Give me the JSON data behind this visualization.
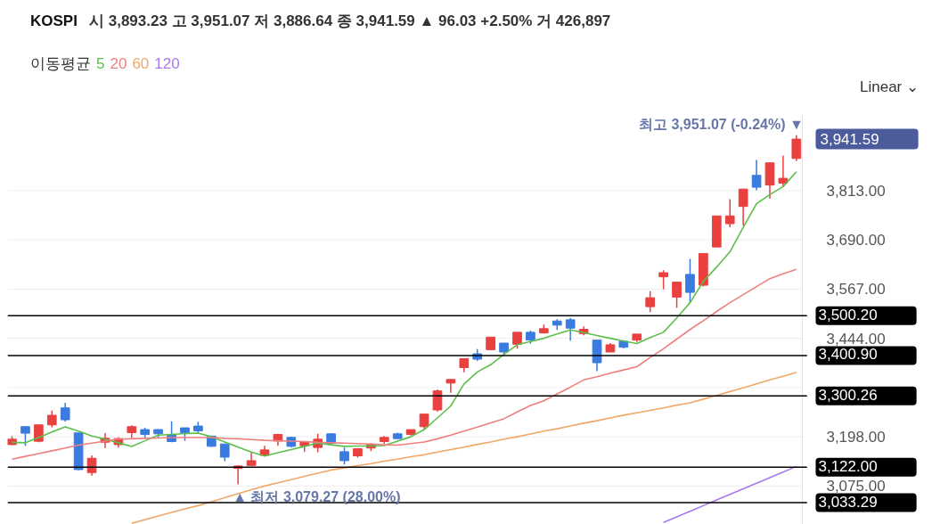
{
  "chart_data": {
    "type": "candlestick",
    "title": "KOSPI",
    "subtitle": "시 3,893.23 고 3,951.07 저 3,886.64 종 3,941.59 ▲ 96.03 +2.50% 거 426,897",
    "legend_title": "이동평균",
    "legend": "top",
    "grid": "y",
    "categories": [
      null,
      null,
      null,
      null,
      null,
      null,
      null,
      null,
      null,
      null,
      null,
      null,
      null,
      null,
      null,
      null,
      null,
      null,
      null,
      null,
      null,
      null,
      null,
      null,
      null,
      null,
      null,
      null,
      null,
      null,
      null,
      null,
      null,
      null,
      null,
      null,
      null,
      null,
      null,
      null,
      null,
      null,
      null,
      null,
      null,
      null,
      null,
      null,
      null,
      null,
      null,
      null,
      null,
      null,
      null,
      null,
      null,
      null,
      null,
      null
    ],
    "ohlc": [
      [
        3178.5,
        3199.6,
        3177.2,
        3191.9
      ],
      [
        3223.3,
        3223.3,
        3175.6,
        3207.0
      ],
      [
        3186.8,
        3227.7,
        3184.6,
        3227.7
      ],
      [
        3227.7,
        3263.5,
        3221.9,
        3251.7
      ],
      [
        3270.2,
        3283.0,
        3235.3,
        3240.5
      ],
      [
        3207.6,
        3207.6,
        3115.0,
        3116.0
      ],
      [
        3108.5,
        3151.7,
        3101.0,
        3144.3
      ],
      [
        3184.6,
        3207.0,
        3169.9,
        3194.2
      ],
      [
        3178.5,
        3196.4,
        3171.2,
        3193.5
      ],
      [
        3208.5,
        3226.4,
        3195.1,
        3223.3
      ],
      [
        3215.9,
        3220.4,
        3195.1,
        3204.0
      ],
      [
        3215.9,
        3217.0,
        3195.1,
        3205.4
      ],
      [
        3202.5,
        3236.7,
        3184.6,
        3186.1
      ],
      [
        3220.4,
        3220.4,
        3187.5,
        3208.5
      ],
      [
        3224.8,
        3235.3,
        3207.0,
        3213.0
      ],
      [
        3199.6,
        3200.9,
        3172.7,
        3174.1
      ],
      [
        3180.1,
        3180.1,
        3137.0,
        3147.2
      ],
      [
        3119.0,
        3126.4,
        3079.27,
        3124.9
      ],
      [
        3126.4,
        3159.3,
        3126.4,
        3138.3
      ],
      [
        3151.7,
        3175.6,
        3150.4,
        3165.1
      ],
      [
        3187.5,
        3203.9,
        3175.6,
        3203.9
      ],
      [
        3196.4,
        3198.0,
        3171.2,
        3174.1
      ],
      [
        3175.6,
        3184.6,
        3160.7,
        3184.6
      ],
      [
        3171.2,
        3205.4,
        3159.3,
        3192.0
      ],
      [
        3205.4,
        3207.0,
        3178.5,
        3181.7
      ],
      [
        3160.7,
        3171.2,
        3129.0,
        3138.3
      ],
      [
        3150.4,
        3168.2,
        3146.0,
        3168.2
      ],
      [
        3169.9,
        3181.7,
        3162.2,
        3178.5
      ],
      [
        3186.1,
        3199.6,
        3180.1,
        3196.4
      ],
      [
        3205.4,
        3208.5,
        3192.0,
        3193.5
      ],
      [
        3204.0,
        3215.9,
        3200.9,
        3215.9
      ],
      [
        3223.3,
        3254.6,
        3217.5,
        3254.6
      ],
      [
        3265.0,
        3316.0,
        3260.6,
        3312.7
      ],
      [
        3332.2,
        3341.1,
        3308.0,
        3341.1
      ],
      [
        3370.9,
        3393.2,
        3359.0,
        3393.2
      ],
      [
        3405.3,
        3417.2,
        3387.4,
        3391.9
      ],
      [
        3415.6,
        3446.9,
        3414.3,
        3446.9
      ],
      [
        3432.0,
        3432.0,
        3402.2,
        3409.8
      ],
      [
        3429.0,
        3459.0,
        3418.7,
        3459.0
      ],
      [
        3459.0,
        3463.4,
        3430.6,
        3439.5
      ],
      [
        3457.4,
        3478.2,
        3455.8,
        3468.0
      ],
      [
        3487.2,
        3491.6,
        3464.8,
        3476.9
      ],
      [
        3490.3,
        3494.8,
        3438.0,
        3469.3
      ],
      [
        3455.8,
        3473.7,
        3451.4,
        3466.4
      ],
      [
        3439.5,
        3439.5,
        3362.0,
        3383.0
      ],
      [
        3409.8,
        3432.0,
        3409.8,
        3427.7
      ],
      [
        3436.6,
        3439.5,
        3418.7,
        3421.6
      ],
      [
        3439.5,
        3454.5,
        3435.0,
        3454.5
      ],
      [
        3523.0,
        3561.9,
        3509.5,
        3545.3
      ],
      [
        3597.6,
        3614.0,
        3566.3,
        3607.9
      ],
      [
        3546.9,
        3584.2,
        3520.0,
        3584.2
      ],
      [
        3603.5,
        3642.4,
        3531.9,
        3558.7
      ],
      [
        3576.6,
        3655.8,
        3573.7,
        3655.8
      ],
      [
        3672.1,
        3749.7,
        3672.1,
        3749.7
      ],
      [
        3730.3,
        3791.3,
        3721.3,
        3749.7
      ],
      [
        3773.4,
        3816.8,
        3725.8,
        3816.8
      ],
      [
        3851.0,
        3889.7,
        3813.7,
        3821.3
      ],
      [
        3826.8,
        3882.3,
        3792.9,
        3882.3
      ],
      [
        3831.6,
        3900.2,
        3821.3,
        3843.6
      ],
      [
        3893.23,
        3951.07,
        3886.64,
        3941.59
      ]
    ],
    "colors": [
      "#e8413f",
      "#3a7be0",
      "#e8413f",
      "#e8413f",
      "#3a7be0",
      "#3a7be0",
      "#e8413f",
      "#e8413f",
      "#e8413f",
      "#e8413f",
      "#3a7be0",
      "#3a7be0",
      "#3a7be0",
      "#3a7be0",
      "#3a7be0",
      "#3a7be0",
      "#3a7be0",
      "#e8413f",
      "#e8413f",
      "#e8413f",
      "#e8413f",
      "#3a7be0",
      "#e8413f",
      "#e8413f",
      "#3a7be0",
      "#3a7be0",
      "#e8413f",
      "#e8413f",
      "#e8413f",
      "#3a7be0",
      "#e8413f",
      "#e8413f",
      "#e8413f",
      "#e8413f",
      "#e8413f",
      "#3a7be0",
      "#e8413f",
      "#3a7be0",
      "#e8413f",
      "#3a7be0",
      "#e8413f",
      "#3a7be0",
      "#3a7be0",
      "#e8413f",
      "#3a7be0",
      "#e8413f",
      "#3a7be0",
      "#e8413f",
      "#e8413f",
      "#e8413f",
      "#e8413f",
      "#3a7be0",
      "#e8413f",
      "#e8413f",
      "#e8413f",
      "#e8413f",
      "#3a7be0",
      "#e8413f",
      "#e8413f",
      "#e8413f"
    ],
    "series": [
      {
        "name": "5",
        "type": "line",
        "color": "#5bbf4a",
        "values": [
          3184,
          3183,
          3196,
          3210,
          3223,
          3212,
          3200,
          3192,
          3183,
          3174,
          3188,
          3202,
          3204,
          3206,
          3207,
          3198,
          3185,
          3172,
          3160,
          3150,
          3158,
          3166,
          3174,
          3182,
          3178,
          3174,
          3175,
          3175,
          3176,
          3187,
          3198,
          3216,
          3245,
          3275,
          3330,
          3360,
          3378,
          3404,
          3428,
          3436,
          3444,
          3455,
          3465,
          3458,
          3451,
          3444,
          3437,
          3431,
          3446,
          3459,
          3495,
          3533,
          3586,
          3622,
          3660,
          3721,
          3780,
          3803,
          3823,
          3860
        ]
      },
      {
        "name": "20",
        "type": "line",
        "color": "#ee7f7f",
        "values": [
          3142,
          3149,
          3156,
          3163,
          3170,
          3177,
          3182,
          3187,
          3192,
          3193,
          3194,
          3195,
          3196,
          3196,
          3196,
          3196,
          3194,
          3193,
          3191,
          3189,
          3188,
          3187,
          3186,
          3184,
          3183,
          3182,
          3181,
          3180,
          3178,
          3177,
          3181,
          3185,
          3193,
          3202,
          3212,
          3222,
          3233,
          3243,
          3260,
          3276,
          3288,
          3305,
          3322,
          3340,
          3348,
          3357,
          3365,
          3373,
          3396,
          3418,
          3442,
          3466,
          3488,
          3511,
          3533,
          3553,
          3573,
          3593,
          3605,
          3616
        ]
      },
      {
        "name": "60",
        "type": "line",
        "color": "#f0a868",
        "values": [
          null,
          null,
          null,
          null,
          null,
          null,
          null,
          null,
          null,
          2982,
          2991,
          3000,
          3009,
          3018,
          3026,
          3036,
          3046,
          3056,
          3066,
          3075,
          3083,
          3091,
          3099,
          3107,
          3115,
          3120,
          3126,
          3131,
          3137,
          3142,
          3148,
          3153,
          3160,
          3166,
          3172,
          3179,
          3185,
          3192,
          3198,
          3205,
          3212,
          3218,
          3225,
          3232,
          3238,
          3245,
          3252,
          3258,
          3264,
          3270,
          3277,
          3283,
          3292,
          3301,
          3311,
          3320,
          3330,
          3340,
          3349,
          3359
        ]
      },
      {
        "name": "120",
        "type": "line",
        "color": "#a878ee",
        "values": [
          null,
          null,
          null,
          null,
          null,
          null,
          null,
          null,
          null,
          null,
          null,
          null,
          null,
          null,
          null,
          null,
          null,
          null,
          null,
          null,
          null,
          null,
          null,
          null,
          null,
          null,
          null,
          null,
          null,
          null,
          null,
          null,
          null,
          null,
          null,
          null,
          null,
          null,
          null,
          null,
          null,
          null,
          null,
          null,
          null,
          null,
          null,
          null,
          null,
          2984,
          2998,
          3012,
          3026,
          3040,
          3054,
          3068,
          3082,
          3096,
          3110,
          3124
        ]
      }
    ],
    "ylim": [
      2979,
      4003
    ],
    "yticks": [
      {
        "value": 3075,
        "label": "3,075.00"
      },
      {
        "value": 3198,
        "label": "3,198.00"
      },
      {
        "value": 3321,
        "label": null
      },
      {
        "value": 3444,
        "label": "3,444.00"
      },
      {
        "value": 3567,
        "label": "3,567.00"
      },
      {
        "value": 3690,
        "label": "3,690.00"
      },
      {
        "value": 3813,
        "label": "3,813.00"
      }
    ],
    "tick_labels": "y",
    "ref_lines": [
      {
        "axis": "y",
        "value": 3500.2,
        "label": "3,500.20",
        "color": "#000000"
      },
      {
        "axis": "y",
        "value": 3400.9,
        "label": "3,400.90",
        "color": "#000000"
      },
      {
        "axis": "y",
        "value": 3300.26,
        "label": "3,300.26",
        "color": "#000000"
      },
      {
        "axis": "y",
        "value": 3122.0,
        "label": "3,122.00",
        "color": "#000000"
      },
      {
        "axis": "y",
        "value": 3033.29,
        "label": "3,033.29",
        "color": "#000000"
      }
    ],
    "annotations": [
      "Linear ⌄",
      "최고 3,951.07 (-0.24%) ▼",
      "▲ 최저 3,079.27 (28.00%)",
      "3,941.59"
    ]
  }
}
